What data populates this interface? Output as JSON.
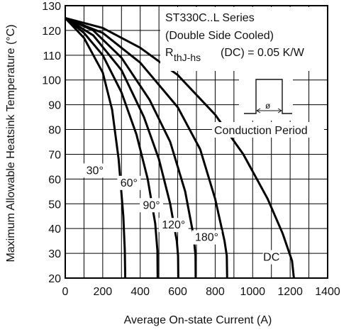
{
  "chart_data": {
    "type": "line",
    "xlabel": "Average On-state Current (A)",
    "ylabel": "Maximum Allowable Heatsink Temperature (°C)",
    "xlim": [
      0,
      1400
    ],
    "ylim": [
      20,
      130
    ],
    "x_ticks": [
      0,
      200,
      400,
      600,
      800,
      1000,
      1200,
      1400
    ],
    "y_ticks": [
      20,
      30,
      40,
      50,
      60,
      70,
      80,
      90,
      100,
      110,
      120,
      130
    ],
    "grid": true,
    "annotation": {
      "series_title": "ST330C..L Series",
      "cooling": "(Double Side Cooled)",
      "r_main": "R",
      "r_sub": "thJ-hs",
      "r_value": "(DC) = 0.05 K/W",
      "phi_symbol": "ø",
      "conduction_label": "Conduction Period"
    },
    "series": [
      {
        "name": "30°",
        "label": "30°",
        "label_at": [
          158,
          62
        ],
        "points": [
          [
            0,
            125
          ],
          [
            100,
            117
          ],
          [
            200,
            103
          ],
          [
            250,
            88
          ],
          [
            285,
            68
          ],
          [
            310,
            45
          ],
          [
            318,
            31
          ],
          [
            320,
            20
          ]
        ]
      },
      {
        "name": "60°",
        "label": "60°",
        "label_at": [
          340,
          57
        ],
        "points": [
          [
            0,
            125
          ],
          [
            100,
            119
          ],
          [
            200,
            110
          ],
          [
            300,
            95
          ],
          [
            380,
            78
          ],
          [
            440,
            60
          ],
          [
            480,
            42
          ],
          [
            492,
            31
          ],
          [
            493,
            20
          ]
        ]
      },
      {
        "name": "90°",
        "label": "90°",
        "label_at": [
          460,
          48
        ],
        "points": [
          [
            0,
            125
          ],
          [
            150,
            118
          ],
          [
            300,
            104
          ],
          [
            420,
            85
          ],
          [
            500,
            68
          ],
          [
            560,
            50
          ],
          [
            595,
            35
          ],
          [
            602,
            29
          ],
          [
            603,
            20
          ]
        ]
      },
      {
        "name": "120°",
        "label": "120°",
        "label_at": [
          578,
          40
        ],
        "points": [
          [
            0,
            125
          ],
          [
            150,
            120
          ],
          [
            300,
            109
          ],
          [
            450,
            92
          ],
          [
            560,
            75
          ],
          [
            640,
            55
          ],
          [
            685,
            37
          ],
          [
            695,
            29
          ],
          [
            696,
            20
          ]
        ]
      },
      {
        "name": "180°",
        "label": "180°",
        "label_at": [
          755,
          35
        ],
        "points": [
          [
            0,
            125
          ],
          [
            200,
            119
          ],
          [
            400,
            107
          ],
          [
            600,
            89
          ],
          [
            720,
            72
          ],
          [
            800,
            52
          ],
          [
            850,
            35
          ],
          [
            862,
            29
          ],
          [
            864,
            20
          ]
        ]
      },
      {
        "name": "DC",
        "label": "DC",
        "label_at": [
          1100,
          27
        ],
        "points": [
          [
            0,
            125
          ],
          [
            200,
            121
          ],
          [
            400,
            113
          ],
          [
            600,
            102
          ],
          [
            800,
            86
          ],
          [
            950,
            70
          ],
          [
            1080,
            52
          ],
          [
            1160,
            38
          ],
          [
            1210,
            27
          ],
          [
            1220,
            20
          ]
        ]
      }
    ]
  }
}
